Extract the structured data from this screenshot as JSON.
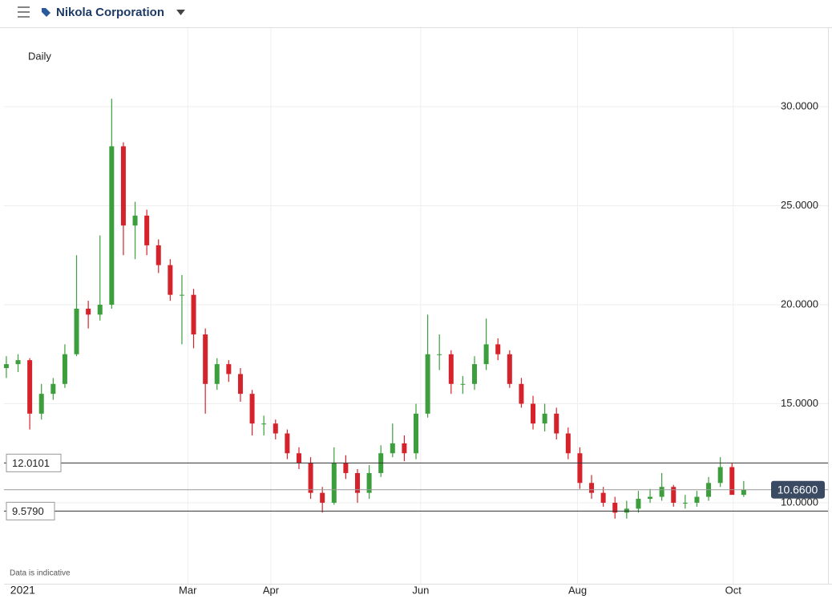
{
  "header": {
    "title": "Nikola Corporation"
  },
  "chart_data": {
    "type": "candlestick",
    "interval": "Daily",
    "note": "Data is indicative",
    "x": [
      0,
      1,
      2,
      3,
      4,
      5,
      6,
      7,
      8,
      9,
      10,
      11,
      12,
      13,
      14,
      15,
      16,
      17,
      18,
      19,
      20,
      21,
      22,
      23,
      24,
      25,
      26,
      27,
      28,
      29,
      30,
      31,
      32,
      33,
      34,
      35,
      36,
      37,
      38,
      39,
      40,
      41,
      42,
      43,
      44,
      45,
      46,
      47,
      48,
      49,
      50,
      51,
      52,
      53,
      54,
      55,
      56,
      57,
      58,
      59,
      60,
      61,
      62,
      63
    ],
    "xlim": [
      -0.2,
      70.2
    ],
    "xticks": [
      {
        "value": 1.4,
        "label": "2021"
      },
      {
        "value": 15.5,
        "label": "Mar"
      },
      {
        "value": 22.6,
        "label": "Apr"
      },
      {
        "value": 35.4,
        "label": "Jun"
      },
      {
        "value": 48.8,
        "label": "Aug"
      },
      {
        "value": 62.1,
        "label": "Oct"
      }
    ],
    "ylim": [
      5.91,
      33.97
    ],
    "yticks": [
      {
        "value": 10,
        "label": "10.0000"
      },
      {
        "value": 15,
        "label": "15.0000"
      },
      {
        "value": 20,
        "label": "20.0000"
      },
      {
        "value": 25,
        "label": "25.0000"
      },
      {
        "value": 30,
        "label": "30.0000"
      }
    ],
    "up_color": "#3c9e3c",
    "down_color": "#d6232b",
    "grid": true,
    "series": [
      {
        "name": "Nikola Corporation",
        "open": [
          16.8,
          17.0,
          17.2,
          14.5,
          15.5,
          16.0,
          17.5,
          19.8,
          19.5,
          20.0,
          28.0,
          24.0,
          24.5,
          23.0,
          22.0,
          20.5,
          20.5,
          18.5,
          16.0,
          17.0,
          16.5,
          15.5,
          14.0,
          14.0,
          13.5,
          12.5,
          12.0,
          10.5,
          10.0,
          12.0,
          11.5,
          10.5,
          11.5,
          12.5,
          13.0,
          12.5,
          14.5,
          17.5,
          17.5,
          16.0,
          16.0,
          17.0,
          18.0,
          17.5,
          16.0,
          15.0,
          14.0,
          14.5,
          13.5,
          12.5,
          11.0,
          10.5,
          10.0,
          9.5,
          9.7,
          10.2,
          10.3,
          10.8,
          10.0,
          10.0,
          10.3,
          11.0,
          11.8,
          10.4
        ],
        "high": [
          17.4,
          17.5,
          17.3,
          16.0,
          16.3,
          18.0,
          22.5,
          20.2,
          23.5,
          30.4,
          28.2,
          25.2,
          24.8,
          23.3,
          22.3,
          21.5,
          20.8,
          18.8,
          17.3,
          17.2,
          16.8,
          15.7,
          14.4,
          14.2,
          13.7,
          12.8,
          12.3,
          10.8,
          12.8,
          12.4,
          11.7,
          11.9,
          12.9,
          14.0,
          13.4,
          15.0,
          19.5,
          18.5,
          17.7,
          16.4,
          17.4,
          19.3,
          18.3,
          17.7,
          16.3,
          15.4,
          15.0,
          14.8,
          13.8,
          12.8,
          11.4,
          10.8,
          10.3,
          10.1,
          10.6,
          10.7,
          11.5,
          10.9,
          10.4,
          10.6,
          11.3,
          12.3,
          12.0,
          11.1
        ],
        "low": [
          16.3,
          16.6,
          13.7,
          14.2,
          15.2,
          15.8,
          17.4,
          18.8,
          19.2,
          19.8,
          22.5,
          22.3,
          22.5,
          21.6,
          20.2,
          18.0,
          17.8,
          14.5,
          15.7,
          16.1,
          15.1,
          13.4,
          13.4,
          13.2,
          12.2,
          11.7,
          10.2,
          9.5,
          9.9,
          11.2,
          10.0,
          10.2,
          11.3,
          12.3,
          12.1,
          12.2,
          14.3,
          16.7,
          15.5,
          15.5,
          15.7,
          16.7,
          17.2,
          15.8,
          14.8,
          13.7,
          13.6,
          13.2,
          12.2,
          10.7,
          10.2,
          9.8,
          9.2,
          9.2,
          9.5,
          10.0,
          10.1,
          9.8,
          9.7,
          9.8,
          10.1,
          10.8,
          10.6,
          10.3
        ],
        "close": [
          17.0,
          17.2,
          14.5,
          15.5,
          16.0,
          17.5,
          19.8,
          19.5,
          20.0,
          28.0,
          24.0,
          24.5,
          23.0,
          22.0,
          20.5,
          20.5,
          18.5,
          16.0,
          17.0,
          16.5,
          15.5,
          14.0,
          14.0,
          13.5,
          12.5,
          12.0,
          10.5,
          10.0,
          12.0,
          11.5,
          10.5,
          11.5,
          12.5,
          13.0,
          12.5,
          14.5,
          17.5,
          17.5,
          16.0,
          16.0,
          17.0,
          18.0,
          17.5,
          16.0,
          15.0,
          14.0,
          14.5,
          13.5,
          12.5,
          11.0,
          10.5,
          10.0,
          9.5,
          9.7,
          10.2,
          10.3,
          10.8,
          10.0,
          10.0,
          10.3,
          11.0,
          11.8,
          10.4,
          10.66
        ]
      }
    ],
    "price_lines": [
      {
        "value": 12.0101,
        "label": "12.0101",
        "side": "left"
      },
      {
        "value": 9.579,
        "label": "9.5790",
        "side": "left"
      },
      {
        "value": 10.66,
        "label": "10.6600",
        "side": "right"
      }
    ]
  }
}
